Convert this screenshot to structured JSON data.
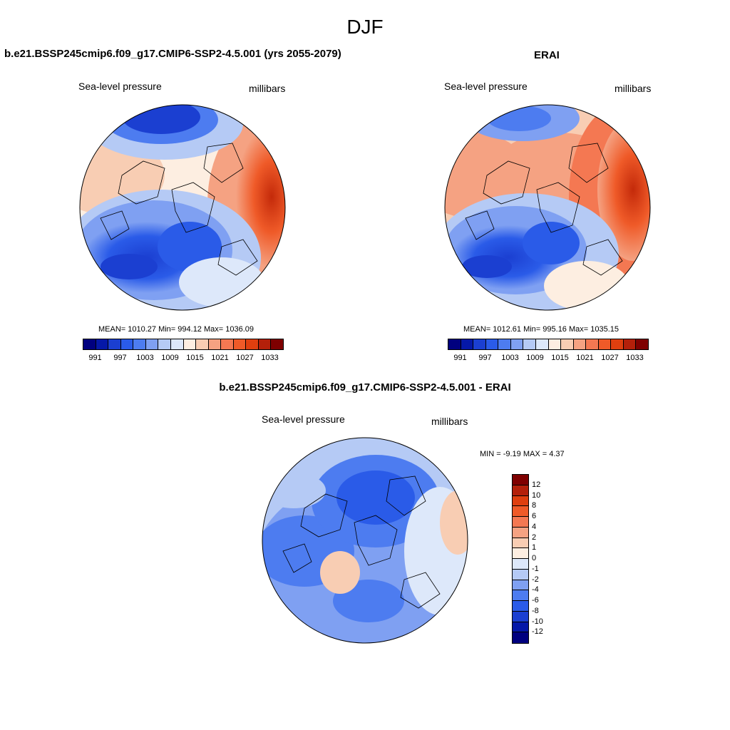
{
  "title": "DJF",
  "panels": {
    "model": {
      "title": "b.e21.BSSP245cmip6.f09_g17.CMIP6-SSP2-4.5.001 (yrs 2055-2079)",
      "variable": "Sea-level pressure",
      "units": "millibars",
      "stats": "MEAN= 1010.27  Min= 994.12  Max= 1036.09"
    },
    "obs": {
      "title": "ERAI",
      "variable": "Sea-level pressure",
      "units": "millibars",
      "stats": "MEAN= 1012.61  Min= 995.16  Max= 1035.15"
    },
    "diff": {
      "title": "b.e21.BSSP245cmip6.f09_g17.CMIP6-SSP2-4.5.001 - ERAI",
      "variable": "Sea-level pressure",
      "units": "millibars",
      "stats": "MIN =  -9.19 MAX =   4.37"
    }
  },
  "colorbar_abs": {
    "colors": [
      "#00007f",
      "#0518a8",
      "#1b3fd1",
      "#2a5be8",
      "#4d7cf0",
      "#7fa0f2",
      "#b5caf5",
      "#dde8fa",
      "#fdeee1",
      "#f8cdb3",
      "#f5a282",
      "#f47852",
      "#ef5a28",
      "#df3f0f",
      "#b4200a",
      "#7f0000"
    ],
    "ticks": [
      "991",
      "997",
      "1003",
      "1009",
      "1015",
      "1021",
      "1027",
      "1033"
    ]
  },
  "colorbar_diff": {
    "colors": [
      "#7f0000",
      "#b4200a",
      "#df3f0f",
      "#ef5a28",
      "#f47852",
      "#f5a282",
      "#f8cdb3",
      "#fdeee1",
      "#dde8fa",
      "#b5caf5",
      "#7fa0f2",
      "#4d7cf0",
      "#2a5be8",
      "#1b3fd1",
      "#0518a8",
      "#00007f"
    ],
    "ticks": [
      "12",
      "10",
      "8",
      "6",
      "4",
      "2",
      "1",
      "0",
      "-1",
      "-2",
      "-4",
      "-6",
      "-8",
      "-10",
      "-12"
    ]
  }
}
